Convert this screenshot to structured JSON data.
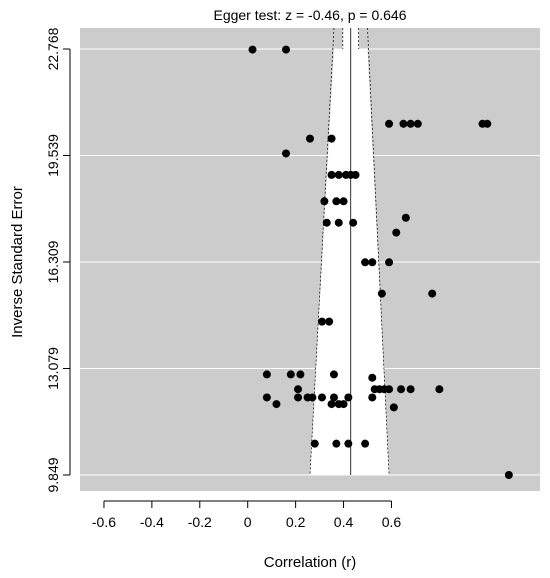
{
  "chart_data": {
    "type": "scatter",
    "title": "Egger test: z = -0.46, p = 0.646",
    "xlabel": "Correlation (r)",
    "ylabel": "Inverse Standard Error",
    "xlim": [
      -0.7,
      1.22
    ],
    "ylim": [
      9.849,
      22.768
    ],
    "x_ticks": [
      -0.6,
      -0.4,
      -0.2,
      0,
      0.2,
      0.4,
      0.6
    ],
    "x_tick_labels": [
      "-0.6",
      "-0.4",
      "-0.2",
      "0",
      "0.2",
      "0.4",
      "0.6"
    ],
    "y_ticks": [
      9.849,
      13.079,
      16.309,
      19.539,
      22.768
    ],
    "y_tick_labels": [
      "9.849",
      "13.079",
      "16.309",
      "19.539",
      "22.768"
    ],
    "grid": true,
    "background_color": "#cccccc",
    "funnel_color": "#ffffff",
    "point_color": "#000000",
    "summary_estimate": 0.43,
    "funnel": {
      "inner_top": [
        0.397,
        0.463
      ],
      "outer_top": [
        0.36,
        0.5
      ],
      "outer_bottom": [
        0.26,
        0.59
      ]
    },
    "points": [
      {
        "x": 0.02,
        "y": 22.75
      },
      {
        "x": 0.16,
        "y": 22.75
      },
      {
        "x": 0.59,
        "y": 20.5
      },
      {
        "x": 0.65,
        "y": 20.5
      },
      {
        "x": 0.68,
        "y": 20.5
      },
      {
        "x": 0.71,
        "y": 20.5
      },
      {
        "x": 0.98,
        "y": 20.5
      },
      {
        "x": 1.0,
        "y": 20.5
      },
      {
        "x": 0.26,
        "y": 20.05
      },
      {
        "x": 0.35,
        "y": 20.05
      },
      {
        "x": 0.16,
        "y": 19.6
      },
      {
        "x": 0.35,
        "y": 18.95
      },
      {
        "x": 0.38,
        "y": 18.95
      },
      {
        "x": 0.41,
        "y": 18.95
      },
      {
        "x": 0.43,
        "y": 18.95
      },
      {
        "x": 0.45,
        "y": 18.95
      },
      {
        "x": 0.32,
        "y": 18.15
      },
      {
        "x": 0.37,
        "y": 18.15
      },
      {
        "x": 0.4,
        "y": 18.15
      },
      {
        "x": 0.66,
        "y": 17.65
      },
      {
        "x": 0.33,
        "y": 17.5
      },
      {
        "x": 0.38,
        "y": 17.5
      },
      {
        "x": 0.44,
        "y": 17.5
      },
      {
        "x": 0.62,
        "y": 17.2
      },
      {
        "x": 0.49,
        "y": 16.3
      },
      {
        "x": 0.52,
        "y": 16.3
      },
      {
        "x": 0.59,
        "y": 16.3
      },
      {
        "x": 0.56,
        "y": 15.35
      },
      {
        "x": 0.77,
        "y": 15.35
      },
      {
        "x": 0.31,
        "y": 14.5
      },
      {
        "x": 0.34,
        "y": 14.5
      },
      {
        "x": 0.08,
        "y": 12.9
      },
      {
        "x": 0.18,
        "y": 12.9
      },
      {
        "x": 0.22,
        "y": 12.9
      },
      {
        "x": 0.36,
        "y": 12.9
      },
      {
        "x": 0.52,
        "y": 12.8
      },
      {
        "x": 0.21,
        "y": 12.45
      },
      {
        "x": 0.53,
        "y": 12.45
      },
      {
        "x": 0.55,
        "y": 12.45
      },
      {
        "x": 0.57,
        "y": 12.45
      },
      {
        "x": 0.59,
        "y": 12.45
      },
      {
        "x": 0.64,
        "y": 12.45
      },
      {
        "x": 0.68,
        "y": 12.45
      },
      {
        "x": 0.8,
        "y": 12.45
      },
      {
        "x": 0.08,
        "y": 12.2
      },
      {
        "x": 0.21,
        "y": 12.2
      },
      {
        "x": 0.25,
        "y": 12.2
      },
      {
        "x": 0.27,
        "y": 12.2
      },
      {
        "x": 0.31,
        "y": 12.2
      },
      {
        "x": 0.36,
        "y": 12.2
      },
      {
        "x": 0.42,
        "y": 12.2
      },
      {
        "x": 0.52,
        "y": 12.2
      },
      {
        "x": 0.12,
        "y": 12.0
      },
      {
        "x": 0.35,
        "y": 12.0
      },
      {
        "x": 0.38,
        "y": 12.0
      },
      {
        "x": 0.4,
        "y": 12.0
      },
      {
        "x": 0.61,
        "y": 11.9
      },
      {
        "x": 0.28,
        "y": 10.8
      },
      {
        "x": 0.37,
        "y": 10.8
      },
      {
        "x": 0.42,
        "y": 10.8
      },
      {
        "x": 0.49,
        "y": 10.8
      },
      {
        "x": 1.09,
        "y": 9.849
      }
    ]
  }
}
